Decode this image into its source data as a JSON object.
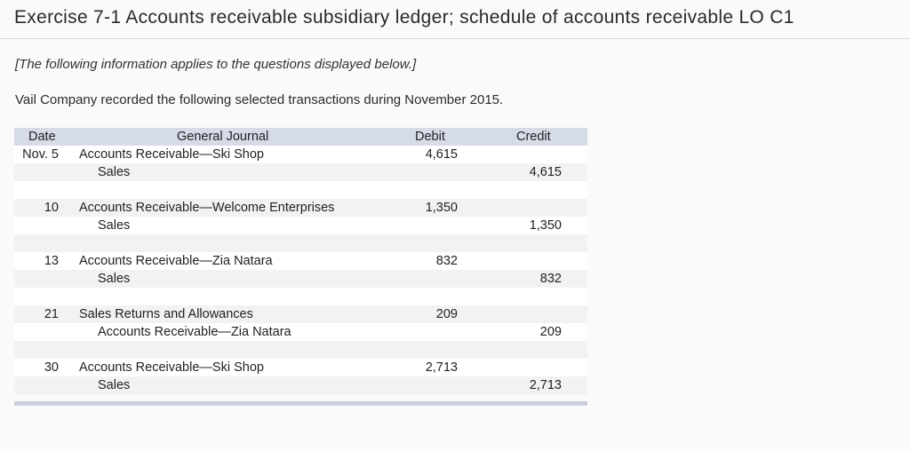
{
  "title": "Exercise 7-1 Accounts receivable subsidiary ledger; schedule of accounts receivable LO C1",
  "intro": "[The following information applies to the questions displayed below.]",
  "description": "Vail Company recorded the following selected transactions during November 2015.",
  "journal": {
    "headers": {
      "date": "Date",
      "account": "General Journal",
      "debit": "Debit",
      "credit": "Credit"
    },
    "entries": [
      {
        "date": "Nov. 5",
        "debit_account": "Accounts Receivable—Ski Shop",
        "debit": "4,615",
        "credit_account": "Sales",
        "credit": "4,615"
      },
      {
        "date": "10",
        "debit_account": "Accounts Receivable—Welcome Enterprises",
        "debit": "1,350",
        "credit_account": "Sales",
        "credit": "1,350"
      },
      {
        "date": "13",
        "debit_account": "Accounts Receivable—Zia Natara",
        "debit": "832",
        "credit_account": "Sales",
        "credit": "832"
      },
      {
        "date": "21",
        "debit_account": "Sales Returns and Allowances",
        "debit": "209",
        "credit_account": "Accounts Receivable—Zia Natara",
        "credit": "209"
      },
      {
        "date": "30",
        "debit_account": "Accounts Receivable—Ski Shop",
        "debit": "2,713",
        "credit_account": "Sales",
        "credit": "2,713"
      }
    ]
  }
}
